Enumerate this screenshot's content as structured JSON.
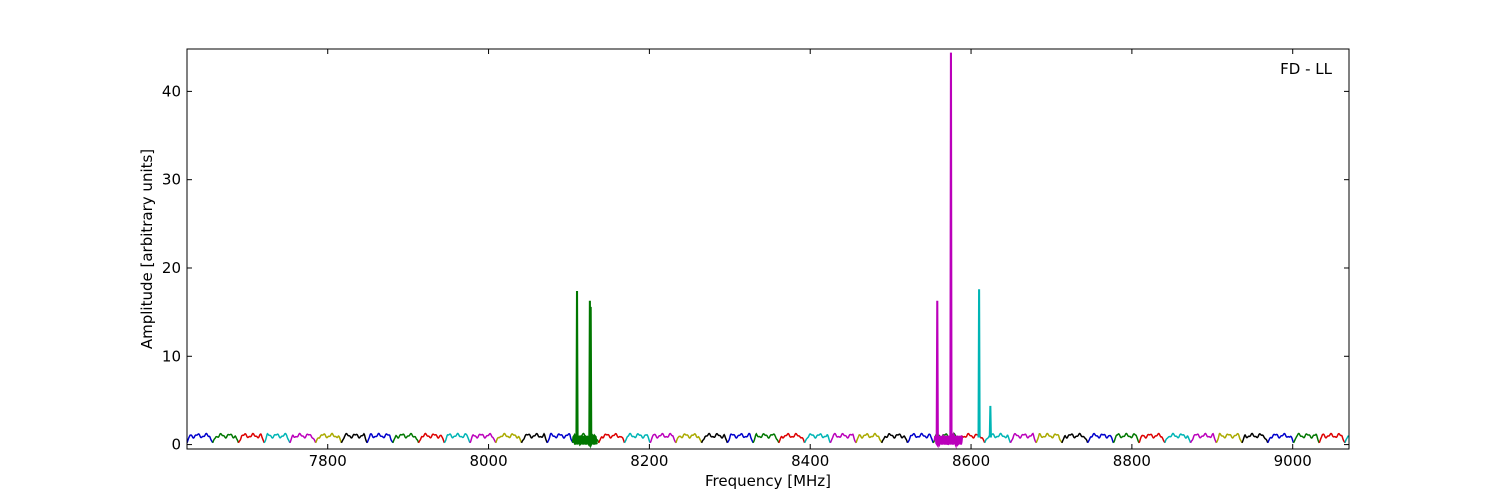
{
  "chart_data": {
    "type": "line",
    "annotation": "FD - LL",
    "xlabel": "Frequency [MHz]",
    "ylabel": "Amplitude [arbitrary units]",
    "xlim": [
      7625,
      9070
    ],
    "ylim": [
      -0.5,
      44.8
    ],
    "xticks": [
      7800,
      8000,
      8200,
      8400,
      8600,
      8800,
      9000
    ],
    "yticks": [
      0,
      10,
      20,
      30,
      40
    ],
    "grid": false,
    "legend": "none",
    "channel_width_mhz": 32,
    "colors": [
      "#0000cc",
      "#007700",
      "#dd0000",
      "#00b5b5",
      "#bb00bb",
      "#aaaa00",
      "#000000"
    ],
    "baseline": {
      "start": 7625,
      "end": 9070,
      "mean": 1.0,
      "ripple": 0.3,
      "dip": 0.2
    },
    "spikes": [
      {
        "x": 8110,
        "peak": 17.3,
        "color": "#007700"
      },
      {
        "x": 8126,
        "peak": 16.2,
        "color": "#007700"
      },
      {
        "x": 8127,
        "peak": 15.5,
        "color": "#007700"
      },
      {
        "x": 8558,
        "peak": 16.2,
        "color": "#bb00bb"
      },
      {
        "x": 8575,
        "peak": 44.3,
        "color": "#bb00bb"
      },
      {
        "x": 8610,
        "peak": 17.5,
        "color": "#00b5b5"
      },
      {
        "x": 8624,
        "peak": 4.3,
        "color": "#00b5b5"
      }
    ]
  }
}
